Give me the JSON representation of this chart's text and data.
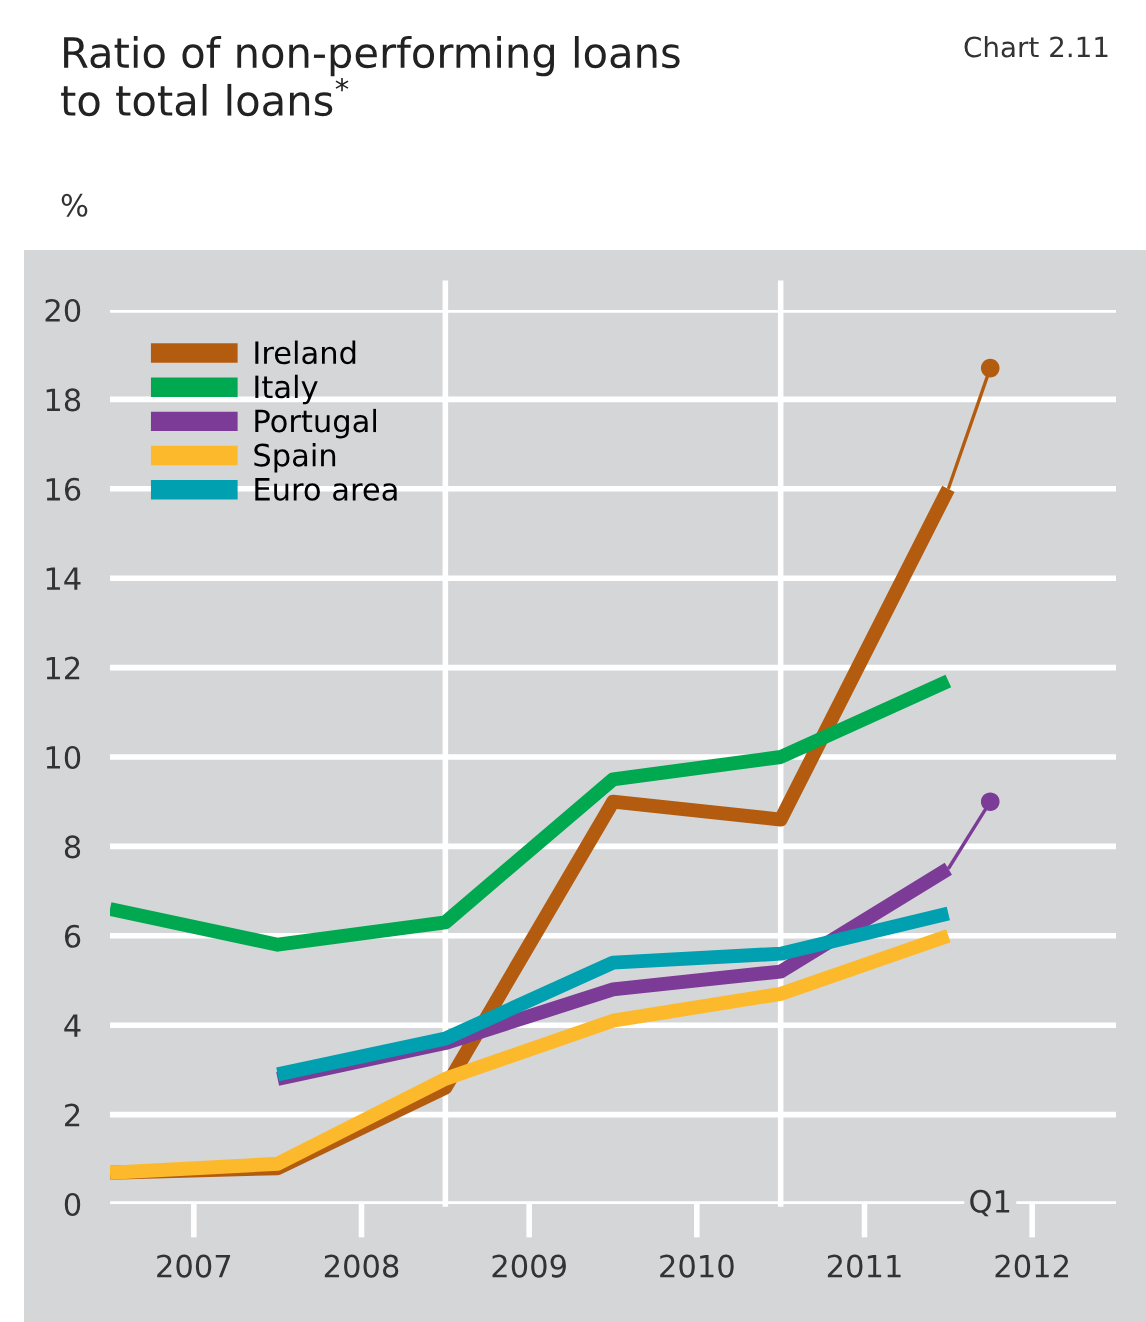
{
  "chart_data": {
    "type": "line",
    "title": "Ratio of non-performing loans\nto total loans$^{*}$",
    "ylabel": "%",
    "annotations": [
      "Chart 2.11",
      {
        "text": "Q1",
        "x": 2012.25,
        "y": 0
      }
    ],
    "xlim": [
      2007,
      2013
    ],
    "xticks": [
      {
        "value": 2007.5,
        "label": "2007"
      },
      {
        "value": 2008.5,
        "label": "2008"
      },
      {
        "value": 2009.5,
        "label": "2009"
      },
      {
        "value": 2010.5,
        "label": "2010"
      },
      {
        "value": 2011.5,
        "label": "2011"
      },
      {
        "value": 2012.5,
        "label": "2012"
      }
    ],
    "ylim": [
      0,
      20
    ],
    "yticks": [
      0,
      2,
      4,
      6,
      8,
      10,
      12,
      14,
      16,
      18,
      20
    ],
    "grid": "y",
    "legend": "top left",
    "ref_lines": [
      {
        "axis": "x",
        "value": 2009,
        "color": "#ffffff"
      },
      {
        "axis": "x",
        "value": 2011,
        "color": "#ffffff"
      }
    ],
    "series": [
      {
        "name": "Ireland",
        "color": "#b35c10",
        "x": [
          2007,
          2008,
          2009,
          2010,
          2011,
          2012
        ],
        "values": [
          0.7,
          0.8,
          2.6,
          9.0,
          8.6,
          16.0
        ]
      },
      {
        "name": "Italy",
        "color": "#00a850",
        "x": [
          2007,
          2008,
          2009,
          2010,
          2011,
          2012
        ],
        "values": [
          6.6,
          5.8,
          6.3,
          9.5,
          10.0,
          11.7
        ]
      },
      {
        "name": "Portugal",
        "color": "#7b3b96",
        "x": [
          2008,
          2009,
          2010,
          2011,
          2012
        ],
        "values": [
          2.8,
          3.6,
          4.8,
          5.2,
          7.5
        ]
      },
      {
        "name": "Spain",
        "color": "#fdb92c",
        "x": [
          2007,
          2008,
          2009,
          2010,
          2011,
          2012
        ],
        "values": [
          0.7,
          0.9,
          2.8,
          4.1,
          4.7,
          6.0
        ]
      },
      {
        "name": "Euro area",
        "color": "#00a0b0",
        "x": [
          2008,
          2009,
          2010,
          2011,
          2012
        ],
        "values": [
          2.9,
          3.7,
          5.4,
          5.6,
          6.5
        ]
      },
      {
        "type": "line",
        "color": "#b35c10",
        "x": [
          2012,
          2012.25
        ],
        "values": [
          16.0,
          18.7
        ]
      },
      {
        "type": "scatter",
        "color": "#b35c10",
        "x": [
          2012.25
        ],
        "values": [
          18.7
        ]
      },
      {
        "type": "line",
        "color": "#7b3b96",
        "x": [
          2012,
          2012.25
        ],
        "values": [
          7.5,
          9.0
        ]
      },
      {
        "type": "scatter",
        "color": "#7b3b96",
        "x": [
          2012.25
        ],
        "values": [
          9.0
        ]
      }
    ]
  }
}
